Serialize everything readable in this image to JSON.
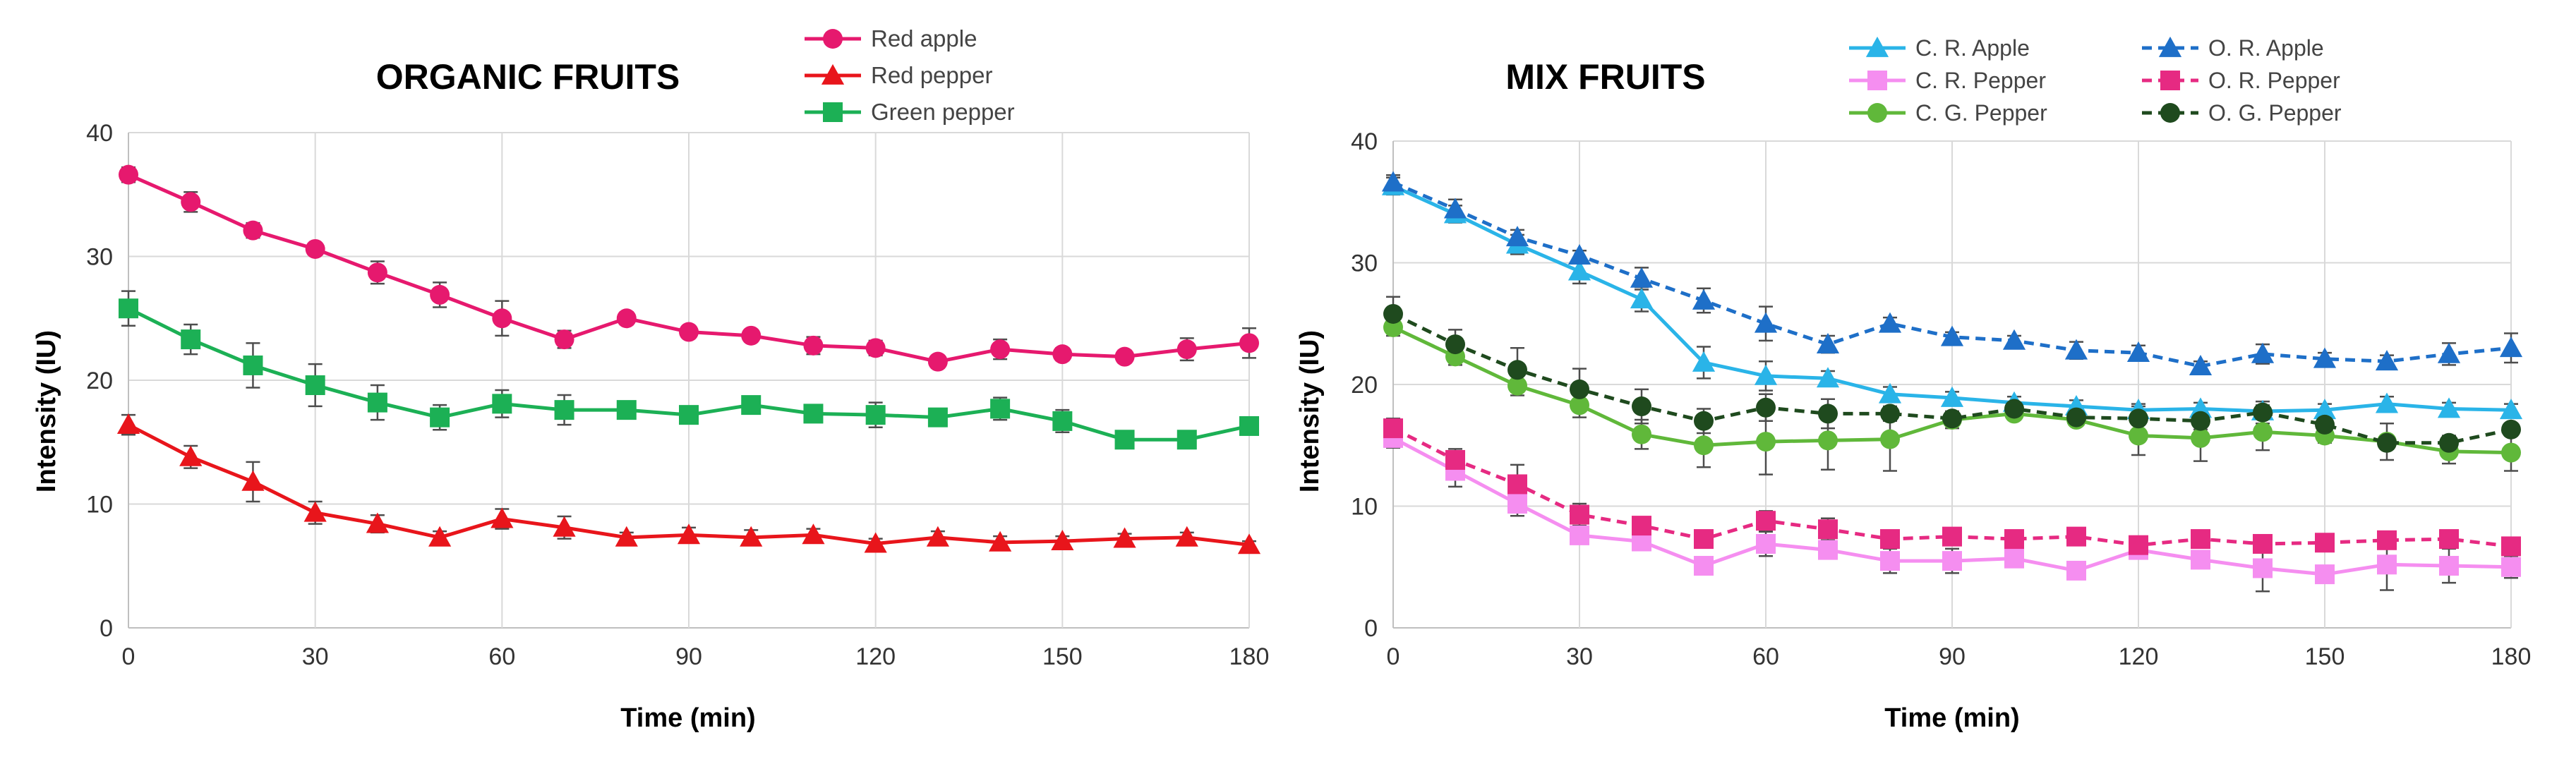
{
  "chart_data": [
    {
      "type": "line",
      "title": "ORGANIC FRUITS",
      "xlabel": "Time (min)",
      "ylabel": "Intensity (IU)",
      "xlim": [
        0,
        180
      ],
      "ylim": [
        0,
        40
      ],
      "x_ticks": [
        "0",
        "30",
        "60",
        "90",
        "120",
        "150",
        "180"
      ],
      "y_ticks": [
        "0",
        "10",
        "20",
        "30",
        "40"
      ],
      "grid": true,
      "legend_position": "top-right",
      "x": [
        0,
        10,
        20,
        30,
        40,
        50,
        60,
        70,
        80,
        90,
        100,
        110,
        120,
        130,
        140,
        150,
        160,
        170,
        180
      ],
      "series": [
        {
          "name": "Red apple",
          "color": "#e6196e",
          "marker": "circle",
          "dashed": false,
          "values": [
            36.6,
            34.4,
            32.1,
            30.6,
            28.7,
            26.9,
            25.0,
            23.3,
            25.0,
            23.9,
            23.6,
            22.8,
            22.6,
            21.5,
            22.5,
            22.1,
            21.9,
            22.5,
            23.0
          ],
          "errors": [
            0.6,
            0.8,
            0.6,
            0.4,
            0.9,
            1.0,
            1.4,
            0.7,
            0.5,
            0.4,
            0.4,
            0.7,
            0.6,
            0.4,
            0.8,
            0.5,
            0.5,
            0.9,
            1.2
          ]
        },
        {
          "name": "Red pepper",
          "color": "#e8151b",
          "marker": "triangle",
          "dashed": false,
          "values": [
            16.4,
            13.8,
            11.8,
            9.3,
            8.4,
            7.3,
            8.8,
            8.1,
            7.3,
            7.5,
            7.3,
            7.5,
            6.8,
            7.3,
            6.9,
            7.0,
            7.2,
            7.3,
            6.7
          ],
          "errors": [
            0.8,
            0.9,
            1.6,
            0.9,
            0.7,
            0.5,
            0.8,
            0.9,
            0.4,
            0.6,
            0.6,
            0.5,
            0.4,
            0.5,
            0.5,
            0.4,
            0.4,
            0.4,
            0.3
          ]
        },
        {
          "name": "Green pepper",
          "color": "#1cb055",
          "marker": "square",
          "dashed": false,
          "values": [
            25.8,
            23.3,
            21.2,
            19.6,
            18.2,
            17.0,
            18.1,
            17.6,
            17.6,
            17.2,
            18.0,
            17.3,
            17.2,
            17.0,
            17.7,
            16.7,
            15.2,
            15.2,
            16.3
          ],
          "errors": [
            1.4,
            1.2,
            1.8,
            1.7,
            1.4,
            1.0,
            1.1,
            1.2,
            0.6,
            0.6,
            0.4,
            0.6,
            1.0,
            0.7,
            0.9,
            0.9,
            0.5,
            0.6,
            0.5
          ]
        }
      ]
    },
    {
      "type": "line",
      "title": "MIX FRUITS",
      "xlabel": "Time (min)",
      "ylabel": "Intensity (IU)",
      "xlim": [
        0,
        180
      ],
      "ylim": [
        0,
        40
      ],
      "x_ticks": [
        "0",
        "30",
        "60",
        "90",
        "120",
        "150",
        "180"
      ],
      "y_ticks": [
        "0",
        "10",
        "20",
        "30",
        "40"
      ],
      "grid": true,
      "legend_position": "top-right",
      "x": [
        0,
        10,
        20,
        30,
        40,
        50,
        60,
        70,
        80,
        90,
        100,
        110,
        120,
        130,
        140,
        150,
        160,
        170,
        180
      ],
      "series": [
        {
          "name": "C. R. Apple",
          "color": "#2ab4e8",
          "marker": "triangle",
          "dashed": false,
          "values": [
            36.3,
            34.0,
            31.5,
            29.3,
            27.0,
            21.8,
            20.7,
            20.5,
            19.2,
            18.9,
            18.5,
            18.2,
            17.9,
            18.0,
            17.8,
            17.9,
            18.4,
            18.0,
            17.9
          ],
          "errors": [
            0.7,
            0.7,
            0.8,
            1.0,
            1.0,
            1.3,
            1.2,
            0.6,
            0.6,
            0.5,
            0.5,
            0.5,
            0.5,
            0.5,
            0.5,
            0.5,
            0.6,
            0.5,
            0.5
          ]
        },
        {
          "name": "C. R. Pepper",
          "color": "#f58ef0",
          "marker": "square",
          "dashed": false,
          "values": [
            15.6,
            12.9,
            10.2,
            7.6,
            7.1,
            5.1,
            6.9,
            6.4,
            5.5,
            5.5,
            5.7,
            4.7,
            6.4,
            5.6,
            4.9,
            4.4,
            5.2,
            5.1,
            5.0
          ],
          "errors": [
            0.8,
            1.3,
            1.0,
            0.7,
            0.6,
            0.6,
            1.0,
            0.7,
            1.0,
            1.0,
            0.7,
            0.5,
            0.6,
            0.7,
            1.9,
            0.6,
            2.1,
            1.4,
            0.9
          ]
        },
        {
          "name": "C. G. Pepper",
          "color": "#60b83a",
          "marker": "circle",
          "dashed": false,
          "values": [
            24.7,
            22.3,
            19.9,
            18.3,
            15.9,
            15.0,
            15.3,
            15.4,
            15.5,
            17.1,
            17.6,
            17.1,
            15.8,
            15.6,
            16.1,
            15.8,
            15.3,
            14.5,
            14.4
          ],
          "errors": [
            0.7,
            0.7,
            0.8,
            1.0,
            1.2,
            1.8,
            2.7,
            2.4,
            2.6,
            0.7,
            0.5,
            0.5,
            1.6,
            1.9,
            1.5,
            0.6,
            1.5,
            1.0,
            1.5
          ]
        },
        {
          "name": "O. R. Apple",
          "color": "#1e6fc8",
          "marker": "triangle",
          "dashed": true,
          "values": [
            36.6,
            34.4,
            32.1,
            30.6,
            28.7,
            26.9,
            25.0,
            23.3,
            25.0,
            23.9,
            23.6,
            22.8,
            22.6,
            21.5,
            22.5,
            22.1,
            21.9,
            22.5,
            23.0
          ],
          "errors": [
            0.6,
            0.8,
            0.6,
            0.4,
            0.9,
            1.0,
            1.4,
            0.7,
            0.5,
            0.4,
            0.4,
            0.7,
            0.6,
            0.4,
            0.8,
            0.5,
            0.5,
            0.9,
            1.2
          ]
        },
        {
          "name": "O. R. Pepper",
          "color": "#e62a82",
          "marker": "square",
          "dashed": true,
          "values": [
            16.4,
            13.8,
            11.8,
            9.3,
            8.4,
            7.3,
            8.8,
            8.1,
            7.3,
            7.5,
            7.3,
            7.5,
            6.8,
            7.3,
            6.9,
            7.0,
            7.2,
            7.3,
            6.7
          ],
          "errors": [
            0.8,
            0.9,
            1.6,
            0.9,
            0.7,
            0.5,
            0.8,
            0.9,
            0.4,
            0.6,
            0.6,
            0.5,
            0.4,
            0.5,
            0.5,
            0.4,
            0.4,
            0.4,
            0.3
          ]
        },
        {
          "name": "O. G. Pepper",
          "color": "#1f4a1e",
          "marker": "circle",
          "dashed": true,
          "values": [
            25.8,
            23.3,
            21.2,
            19.6,
            18.2,
            17.0,
            18.1,
            17.6,
            17.6,
            17.2,
            18.0,
            17.3,
            17.2,
            17.0,
            17.7,
            16.7,
            15.2,
            15.2,
            16.3
          ],
          "errors": [
            1.4,
            1.2,
            1.8,
            1.7,
            1.4,
            1.0,
            1.1,
            1.2,
            0.6,
            0.6,
            0.4,
            0.6,
            1.0,
            0.7,
            0.9,
            0.9,
            0.5,
            0.6,
            0.5
          ]
        }
      ]
    }
  ]
}
